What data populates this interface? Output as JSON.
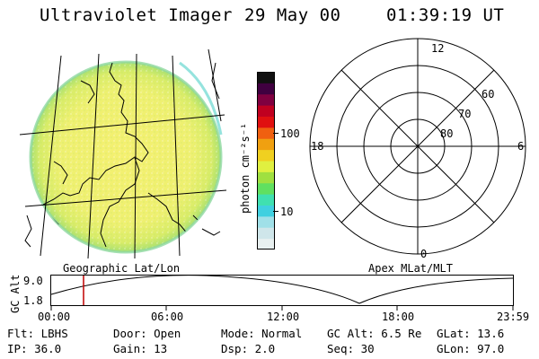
{
  "header": {
    "title": "Ultraviolet Imager",
    "date": "29 May 00",
    "time": "01:39:19 UT"
  },
  "colorbar": {
    "unit_label": "photon cm⁻²s⁻¹",
    "tick_100": "100",
    "tick_10": "10",
    "colors": [
      "#e8f0f0",
      "#cfe6ea",
      "#a0e0e8",
      "#40d0e0",
      "#40e0b0",
      "#60e060",
      "#a0e040",
      "#e0f040",
      "#f0d020",
      "#f0a010",
      "#f06010",
      "#e01010",
      "#c00020",
      "#800040",
      "#400040",
      "#101010"
    ]
  },
  "polar": {
    "mlt_top": "12",
    "mlt_left": "18",
    "mlt_right": "6",
    "mlt_bottom": "0",
    "lat_60": "60",
    "lat_70": "70",
    "lat_80": "80"
  },
  "labels": {
    "geo": "Geographic Lat/Lon",
    "apex": "Apex MLat/MLT"
  },
  "altitude_plot": {
    "axis_label": "GC Alt",
    "y_top": "9.0",
    "y_bottom": "1.8",
    "x_ticks": [
      "00:00",
      "06:00",
      "12:00",
      "18:00",
      "23:59"
    ],
    "current_time_marker": "01:39"
  },
  "footer": {
    "flt": "Flt: LBHS",
    "ip": "IP: 36.0",
    "door": "Door: Open",
    "gain": "Gain: 13",
    "mode": "Mode: Normal",
    "dsp": "Dsp:   2.0",
    "gcalt": "GC Alt: 6.5 Re",
    "seq": "Seq: 30",
    "glat": "GLat:  13.6",
    "glon": "GLon:  97.0"
  }
}
